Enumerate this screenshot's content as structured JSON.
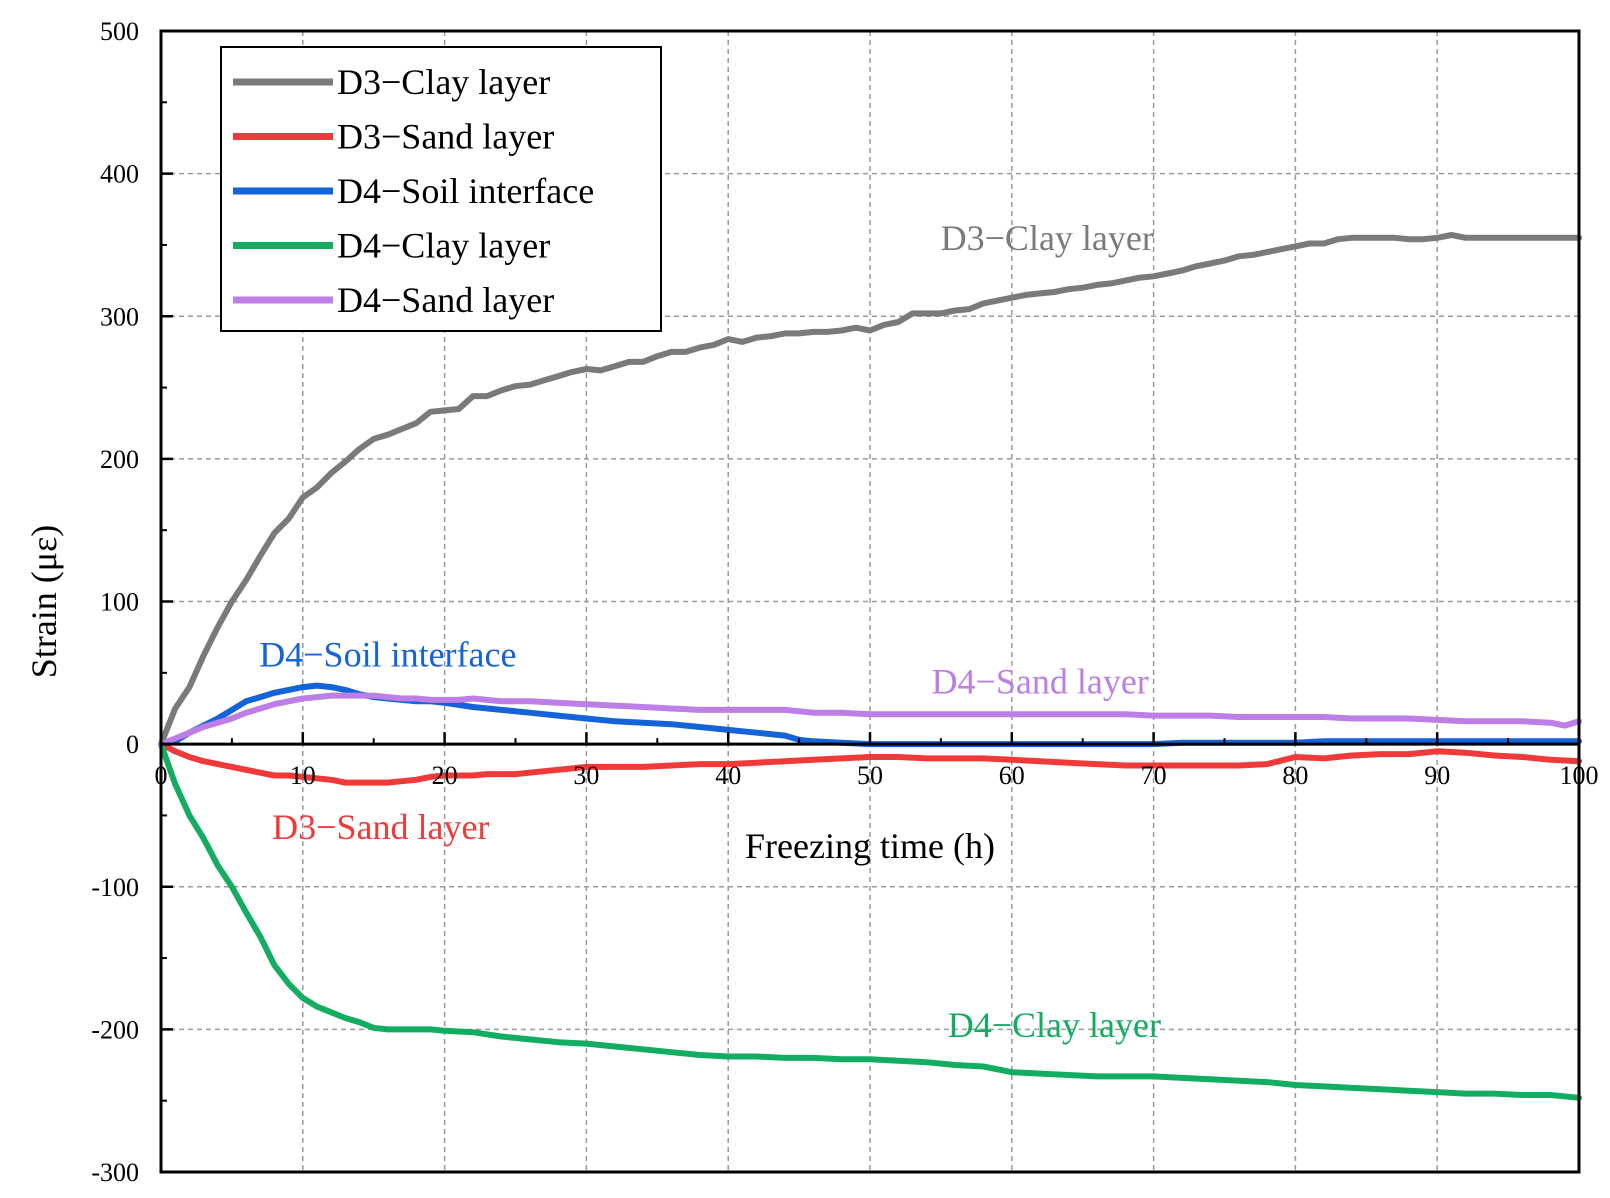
{
  "chart_data": {
    "type": "line",
    "xlabel": "Freezing time (h)",
    "ylabel": "Strain (με)",
    "xlim": [
      0,
      100
    ],
    "ylim": [
      -300,
      500
    ],
    "x_ticks": [
      0,
      10,
      20,
      30,
      40,
      50,
      60,
      70,
      80,
      90,
      100
    ],
    "x_tick_labels": [
      "0",
      "10",
      "20",
      "30",
      "40",
      "50",
      "60",
      "70",
      "80",
      "90",
      "100"
    ],
    "y_ticks": [
      -300,
      -200,
      -100,
      0,
      100,
      200,
      300,
      400,
      500
    ],
    "y_tick_labels": [
      "-300",
      "-200",
      "-100",
      "0",
      "100",
      "200",
      "300",
      "400",
      "500"
    ],
    "grid": true,
    "legend_position": "top-left",
    "series": [
      {
        "name": "D3−Clay layer",
        "color": "#7a7a7a",
        "x": [
          0,
          1,
          2,
          3,
          4,
          5,
          6,
          7,
          8,
          9,
          10,
          11,
          12,
          13,
          14,
          15,
          16,
          17,
          18,
          19,
          20,
          21,
          22,
          23,
          24,
          25,
          26,
          27,
          28,
          29,
          30,
          31,
          32,
          33,
          34,
          35,
          36,
          37,
          38,
          39,
          40,
          41,
          42,
          43,
          44,
          45,
          46,
          47,
          48,
          49,
          50,
          51,
          52,
          53,
          54,
          55,
          56,
          57,
          58,
          59,
          60,
          61,
          62,
          63,
          64,
          65,
          66,
          67,
          68,
          69,
          70,
          71,
          72,
          73,
          74,
          75,
          76,
          77,
          78,
          79,
          80,
          81,
          82,
          83,
          84,
          85,
          86,
          87,
          88,
          89,
          90,
          91,
          92,
          93,
          94,
          95,
          96,
          97,
          98,
          99,
          100
        ],
        "y": [
          0,
          25,
          40,
          62,
          82,
          100,
          115,
          132,
          148,
          158,
          173,
          180,
          190,
          198,
          207,
          214,
          217,
          221,
          225,
          233,
          234,
          235,
          244,
          244,
          248,
          251,
          252,
          255,
          258,
          261,
          263,
          262,
          265,
          268,
          268,
          272,
          275,
          275,
          278,
          280,
          284,
          282,
          285,
          286,
          288,
          288,
          289,
          289,
          290,
          292,
          290,
          294,
          296,
          302,
          302,
          302,
          304,
          305,
          309,
          311,
          313,
          315,
          316,
          317,
          319,
          320,
          322,
          323,
          325,
          327,
          328,
          330,
          332,
          335,
          337,
          339,
          342,
          343,
          345,
          347,
          349,
          351,
          351,
          354,
          355,
          355,
          355,
          355,
          354,
          354,
          355,
          357,
          355,
          355,
          355,
          355,
          355,
          355,
          355,
          355,
          355
        ]
      },
      {
        "name": "D3−Sand layer",
        "color": "#f03a3a",
        "x": [
          0,
          1,
          2,
          3,
          4,
          5,
          6,
          7,
          8,
          9,
          10,
          11,
          12,
          13,
          14,
          15,
          16,
          17,
          18,
          19,
          20,
          21,
          22,
          23,
          24,
          25,
          26,
          27,
          28,
          29,
          30,
          32,
          34,
          36,
          38,
          40,
          42,
          44,
          46,
          48,
          50,
          52,
          54,
          56,
          58,
          60,
          62,
          64,
          66,
          68,
          70,
          72,
          74,
          76,
          78,
          80,
          82,
          84,
          86,
          88,
          90,
          92,
          94,
          96,
          98,
          100
        ],
        "y": [
          0,
          -5,
          -9,
          -12,
          -14,
          -16,
          -18,
          -20,
          -22,
          -22,
          -23,
          -24,
          -25,
          -27,
          -27,
          -27,
          -27,
          -26,
          -25,
          -23,
          -22,
          -22,
          -22,
          -21,
          -21,
          -21,
          -20,
          -19,
          -18,
          -17,
          -16,
          -16,
          -16,
          -15,
          -14,
          -14,
          -13,
          -12,
          -11,
          -10,
          -9,
          -9,
          -10,
          -10,
          -10,
          -11,
          -12,
          -13,
          -14,
          -15,
          -15,
          -15,
          -15,
          -15,
          -14,
          -9,
          -10,
          -8,
          -7,
          -7,
          -5,
          -6,
          -8,
          -9,
          -11,
          -12
        ]
      },
      {
        "name": "D4−Soil interface",
        "color": "#1563d8",
        "x": [
          0,
          1,
          2,
          3,
          4,
          5,
          6,
          7,
          8,
          9,
          10,
          11,
          12,
          13,
          14,
          15,
          16,
          17,
          18,
          19,
          20,
          22,
          24,
          26,
          28,
          30,
          32,
          34,
          36,
          38,
          40,
          42,
          44,
          45,
          46,
          48,
          50,
          52,
          54,
          56,
          58,
          60,
          62,
          64,
          66,
          68,
          70,
          72,
          74,
          76,
          78,
          80,
          82,
          84,
          86,
          88,
          90,
          92,
          94,
          96,
          98,
          100
        ],
        "y": [
          0,
          2,
          8,
          13,
          18,
          24,
          30,
          33,
          36,
          38,
          40,
          41,
          40,
          38,
          35,
          33,
          32,
          31,
          30,
          30,
          29,
          26,
          24,
          22,
          20,
          18,
          16,
          15,
          14,
          12,
          10,
          8,
          6,
          3,
          2,
          1,
          0,
          0,
          0,
          0,
          0,
          0,
          0,
          0,
          0,
          0,
          0,
          1,
          1,
          1,
          1,
          1,
          2,
          2,
          2,
          2,
          2,
          2,
          2,
          2,
          2,
          2
        ]
      },
      {
        "name": "D4−Clay layer",
        "color": "#13ad62",
        "x": [
          0,
          1,
          2,
          3,
          4,
          5,
          6,
          7,
          8,
          9,
          10,
          11,
          12,
          13,
          14,
          15,
          16,
          17,
          18,
          19,
          20,
          22,
          24,
          26,
          28,
          30,
          32,
          34,
          36,
          38,
          40,
          42,
          44,
          46,
          48,
          50,
          52,
          54,
          56,
          58,
          60,
          62,
          64,
          66,
          68,
          70,
          72,
          74,
          76,
          78,
          80,
          82,
          84,
          86,
          88,
          90,
          92,
          94,
          96,
          98,
          100
        ],
        "y": [
          0,
          -28,
          -50,
          -66,
          -85,
          -100,
          -118,
          -135,
          -155,
          -168,
          -178,
          -184,
          -188,
          -192,
          -195,
          -199,
          -200,
          -200,
          -200,
          -200,
          -201,
          -202,
          -205,
          -207,
          -209,
          -210,
          -212,
          -214,
          -216,
          -218,
          -219,
          -219,
          -220,
          -220,
          -221,
          -221,
          -222,
          -223,
          -225,
          -226,
          -230,
          -231,
          -232,
          -233,
          -233,
          -233,
          -234,
          -235,
          -236,
          -237,
          -239,
          -240,
          -241,
          -242,
          -243,
          -244,
          -245,
          -245,
          -246,
          -246,
          -248
        ]
      },
      {
        "name": "D4−Sand layer",
        "color": "#bd7ee6",
        "x": [
          0,
          1,
          2,
          3,
          4,
          5,
          6,
          7,
          8,
          9,
          10,
          11,
          12,
          13,
          14,
          15,
          16,
          17,
          18,
          19,
          20,
          21,
          22,
          23,
          24,
          26,
          28,
          30,
          32,
          34,
          36,
          38,
          40,
          42,
          44,
          46,
          48,
          50,
          52,
          54,
          56,
          58,
          60,
          62,
          64,
          66,
          68,
          70,
          72,
          74,
          76,
          78,
          80,
          82,
          84,
          86,
          88,
          90,
          92,
          94,
          96,
          98,
          99,
          100
        ],
        "y": [
          0,
          4,
          8,
          12,
          15,
          18,
          22,
          25,
          28,
          30,
          32,
          33,
          34,
          34,
          34,
          34,
          33,
          32,
          32,
          31,
          31,
          31,
          32,
          31,
          30,
          30,
          29,
          28,
          27,
          26,
          25,
          24,
          24,
          24,
          24,
          22,
          22,
          21,
          21,
          21,
          21,
          21,
          21,
          21,
          21,
          21,
          21,
          20,
          20,
          20,
          19,
          19,
          19,
          19,
          18,
          18,
          18,
          17,
          16,
          16,
          16,
          15,
          13,
          16
        ]
      }
    ],
    "annotations": [
      {
        "text": "D3−Clay layer",
        "color": "#7a7a7a",
        "x": 62.5,
        "y": 355
      },
      {
        "text": "D4−Soil interface",
        "color": "#1563d8",
        "x": 16,
        "y": 63
      },
      {
        "text": "D4−Sand layer",
        "color": "#bd7ee6",
        "x": 62,
        "y": 44
      },
      {
        "text": "D3−Sand layer",
        "color": "#f03a3a",
        "x": 15.5,
        "y": -58
      },
      {
        "text": "D4−Clay layer",
        "color": "#13ad62",
        "x": 63,
        "y": -197
      }
    ]
  }
}
